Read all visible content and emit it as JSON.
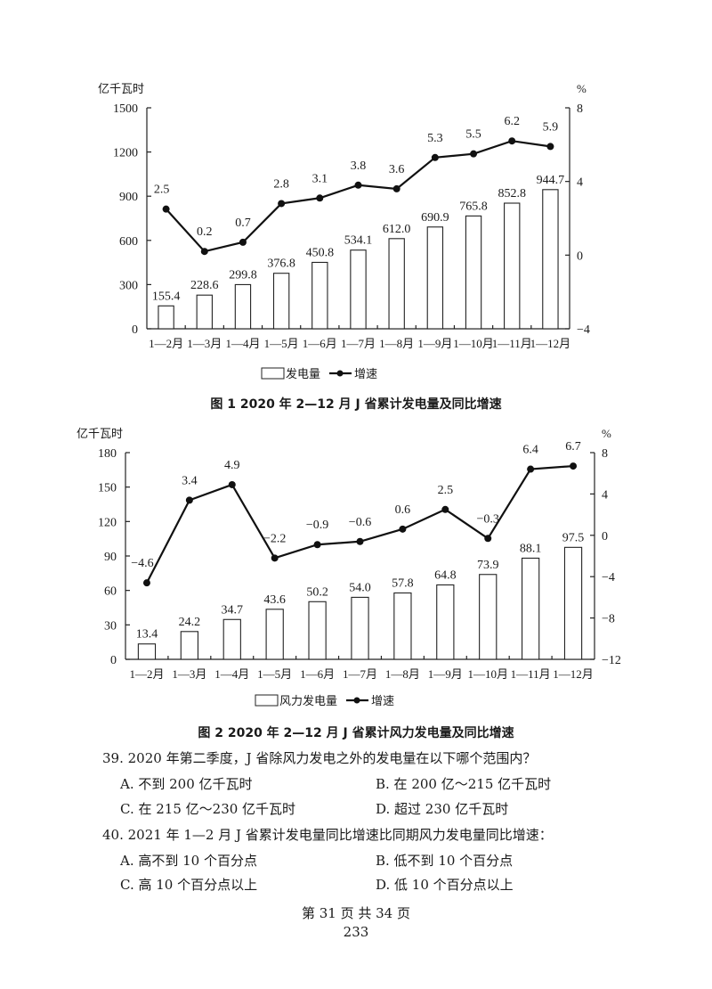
{
  "chart_data": [
    {
      "type": "bar+line",
      "title": "图 1   2020 年 2—12 月 J 省累计发电量及同比增速",
      "ylabel_left": "亿千瓦时",
      "ylabel_right": "%",
      "categories": [
        "1—2月",
        "1—3月",
        "1—4月",
        "1—5月",
        "1—6月",
        "1—7月",
        "1—8月",
        "1—9月",
        "1—10月",
        "1—11月",
        "1—12月"
      ],
      "ylim_left": [
        0,
        1500
      ],
      "yticks_left": [
        0,
        300,
        600,
        900,
        1200,
        1500
      ],
      "ylim_right": [
        -4,
        8
      ],
      "yticks_right": [
        -4,
        0,
        4,
        8
      ],
      "grid": false,
      "legend_placement": "bottom",
      "series": [
        {
          "name": "发电量",
          "kind": "bar",
          "axis": "left",
          "values": [
            155.4,
            228.6,
            299.8,
            376.8,
            450.8,
            534.1,
            612.0,
            690.9,
            765.8,
            852.8,
            944.7
          ],
          "labels": [
            "155.4",
            "228.6",
            "299.8",
            "376.8",
            "450.8",
            "534.1",
            "612.0",
            "690.9",
            "765.8",
            "852.8",
            "944.7"
          ]
        },
        {
          "name": "增速",
          "kind": "line",
          "axis": "right",
          "values": [
            2.5,
            0.2,
            0.7,
            2.8,
            3.1,
            3.8,
            3.6,
            5.3,
            5.5,
            6.2,
            5.9
          ],
          "labels": [
            "2.5",
            "0.2",
            "0.7",
            "2.8",
            "3.1",
            "3.8",
            "3.6",
            "5.3",
            "5.5",
            "6.2",
            "5.9"
          ]
        }
      ]
    },
    {
      "type": "bar+line",
      "title": "图 2   2020 年 2—12 月 J 省累计风力发电量及同比增速",
      "ylabel_left": "亿千瓦时",
      "ylabel_right": "%",
      "categories": [
        "1—2月",
        "1—3月",
        "1—4月",
        "1—5月",
        "1—6月",
        "1—7月",
        "1—8月",
        "1—9月",
        "1—10月",
        "1—11月",
        "1—12月"
      ],
      "ylim_left": [
        0,
        180
      ],
      "yticks_left": [
        0,
        30,
        60,
        90,
        120,
        150,
        180
      ],
      "ylim_right": [
        -12,
        8
      ],
      "yticks_right": [
        -12,
        -8,
        -4,
        0,
        4,
        8
      ],
      "grid": false,
      "legend_placement": "bottom",
      "series": [
        {
          "name": "风力发电量",
          "kind": "bar",
          "axis": "left",
          "values": [
            13.4,
            24.2,
            34.7,
            43.6,
            50.2,
            54.0,
            57.8,
            64.8,
            73.9,
            88.1,
            97.5
          ],
          "labels": [
            "13.4",
            "24.2",
            "34.7",
            "43.6",
            "50.2",
            "54.0",
            "57.8",
            "64.8",
            "73.9",
            "88.1",
            "97.5"
          ]
        },
        {
          "name": "增速",
          "kind": "line",
          "axis": "right",
          "values": [
            -4.6,
            3.4,
            4.9,
            -2.2,
            -0.9,
            -0.6,
            0.6,
            2.5,
            -0.3,
            6.4,
            6.7
          ],
          "labels": [
            "−4.6",
            "3.4",
            "4.9",
            "−2.2",
            "−0.9",
            "−0.6",
            "0.6",
            "2.5",
            "−0.3",
            "6.4",
            "6.7"
          ]
        }
      ]
    }
  ],
  "questions": [
    {
      "stem": "39. 2020 年第二季度，J 省除风力发电之外的发电量在以下哪个范围内？",
      "options": [
        "A. 不到 200 亿千瓦时",
        "B. 在 200 亿～215 亿千瓦时",
        "C. 在 215 亿～230 亿千瓦时",
        "D. 超过 230 亿千瓦时"
      ]
    },
    {
      "stem": "40. 2021 年 1—2 月 J 省累计发电量同比增速比同期风力发电量同比增速：",
      "options": [
        "A. 高不到 10 个百分点",
        "B. 低不到 10 个百分点",
        "C. 高 10 个百分点以上",
        "D. 低 10 个百分点以上"
      ]
    }
  ],
  "footer": {
    "page": "第 31 页   共 34 页",
    "number": "233"
  }
}
